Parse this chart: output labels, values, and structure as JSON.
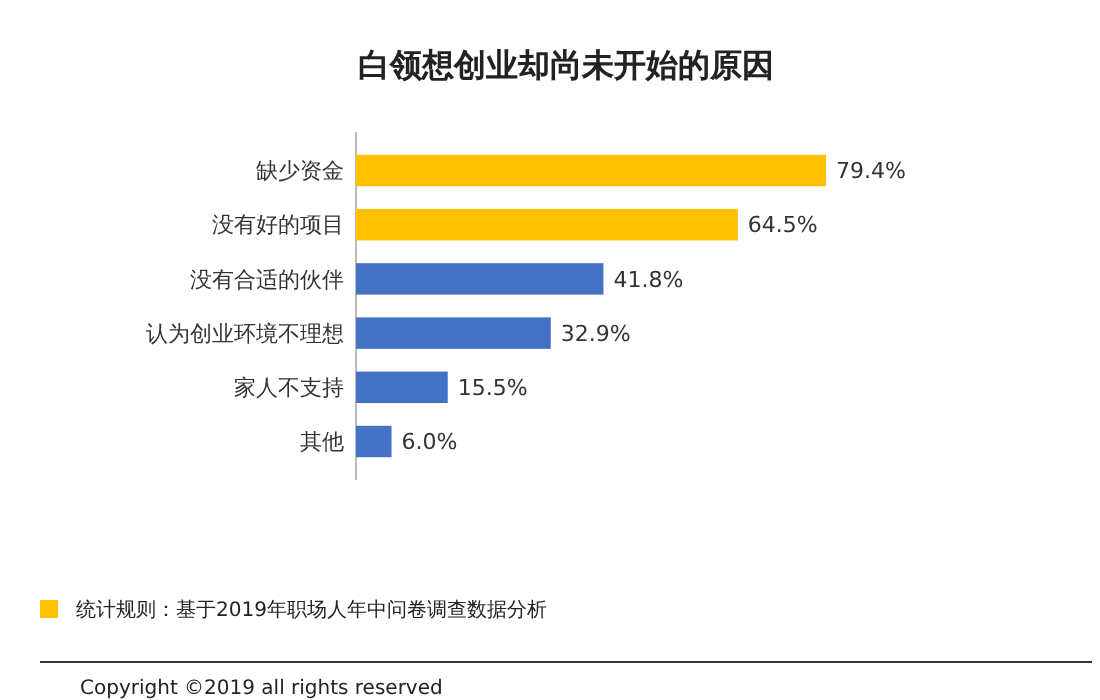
{
  "chart_data": {
    "type": "bar",
    "orientation": "horizontal",
    "title": "白领想创业却尚未开始的原因",
    "categories": [
      "缺少资金",
      "没有好的项目",
      "没有合适的伙伴",
      "认为创业环境不理想",
      "家人不支持",
      "其他"
    ],
    "values": [
      79.4,
      64.5,
      41.8,
      32.9,
      15.5,
      6.0
    ],
    "value_labels": [
      "79.4%",
      "64.5%",
      "41.8%",
      "32.9%",
      "15.5%",
      "6.0%"
    ],
    "colors": [
      "#ffc000",
      "#ffc000",
      "#4472c4",
      "#4472c4",
      "#4472c4",
      "#4472c4"
    ],
    "annotations": [
      "统计规则：基于2019年职场人年中问卷调查数据分析",
      "Copyright ©2019 all rights reserved"
    ]
  }
}
